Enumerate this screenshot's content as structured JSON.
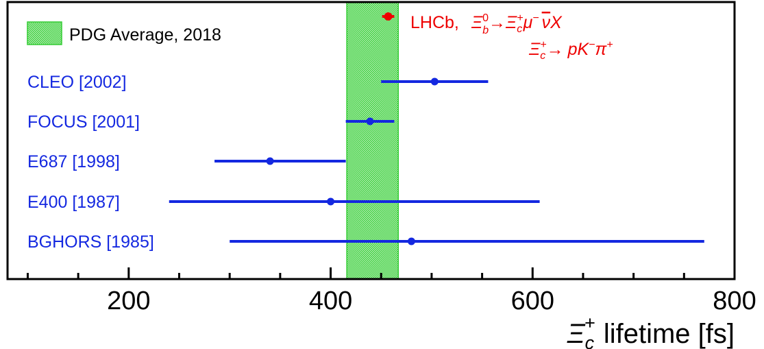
{
  "chart_data": {
    "type": "scatter",
    "title": "",
    "xlabel": "lifetime [fs]",
    "xlabel_symbol": "Ξ",
    "xlabel_sub": "c",
    "xlabel_sup": "+",
    "ylabel": "",
    "xlim": [
      80,
      800
    ],
    "xticks": [
      200,
      400,
      600,
      800
    ],
    "xtick_labels": [
      "200",
      "400",
      "600",
      "800"
    ],
    "x_minor_step": 50,
    "grid": false,
    "legend": {
      "placement": "top-left",
      "entries": [
        {
          "label": "PDG Average, 2018",
          "kind": "band"
        }
      ]
    },
    "pdg_band": {
      "low": 416,
      "high": 467,
      "color": "#33cc33"
    },
    "measurements": [
      {
        "label": "LHCb,",
        "value": 457,
        "err_low": 6,
        "err_high": 6,
        "color": "#ee0000"
      },
      {
        "label": "CLEO [2002]",
        "value": 503,
        "err_low": 53,
        "err_high": 53,
        "color": "#1428e0"
      },
      {
        "label": "FOCUS [2001]",
        "value": 439,
        "err_low": 24,
        "err_high": 24,
        "color": "#1428e0"
      },
      {
        "label": "E687 [1998]",
        "value": 340,
        "err_low": 55,
        "err_high": 75,
        "color": "#1428e0"
      },
      {
        "label": "E400  [1987]",
        "value": 400,
        "err_low": 160,
        "err_high": 207,
        "color": "#1428e0"
      },
      {
        "label": "BGHORS  [1985]",
        "value": 480,
        "err_low": 180,
        "err_high": 290,
        "color": "#1428e0"
      }
    ],
    "lhcb_decay": {
      "line1": {
        "b_sym": "Ξ",
        "b_sub": "b",
        "b_sup": "0",
        "arrow": "→",
        "c_sym": "Ξ",
        "c_sub": "c",
        "c_sup": "+",
        "mu": "μ",
        "mu_sup": "−",
        "nu": "ν",
        "X": "X"
      },
      "line2": {
        "c_sym": "Ξ",
        "c_sub": "c",
        "c_sup": "+",
        "arrow": "→",
        "p": "p",
        "K": "K",
        "K_sup": "−",
        "pi": "π",
        "pi_sup": "+"
      }
    }
  }
}
